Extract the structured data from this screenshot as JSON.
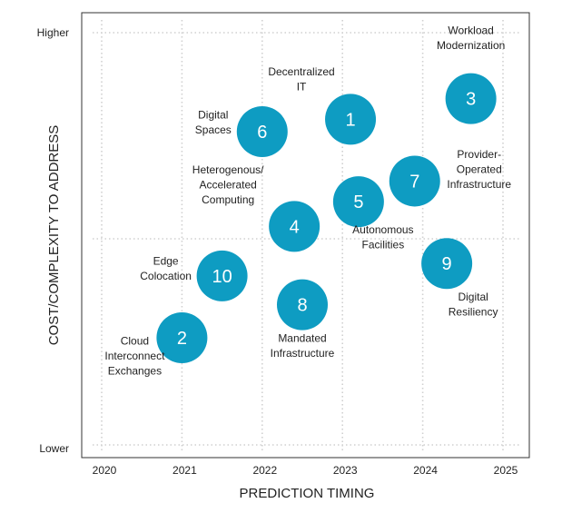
{
  "chart_data": {
    "type": "scatter",
    "title": "",
    "xlabel": "PREDICTION TIMING",
    "ylabel": "COST/COMPLEXITY TO ADDRESS",
    "x_ticks": [
      "2020",
      "2021",
      "2022",
      "2023",
      "2024",
      "2025"
    ],
    "xlim": [
      2020,
      2025
    ],
    "y_tick_high": "Higher",
    "y_tick_low": "Lower",
    "ylim": [
      0,
      100
    ],
    "grid": true,
    "marker_color": "#0e9cc2",
    "points": [
      {
        "number": "1",
        "label": [
          "Decentralized",
          "IT"
        ],
        "x": 2023.1,
        "y": 79
      },
      {
        "number": "2",
        "label": [
          "Cloud",
          "Interconnect",
          "Exchanges"
        ],
        "x": 2021.0,
        "y": 26
      },
      {
        "number": "3",
        "label": [
          "Workload",
          "Modernization"
        ],
        "x": 2024.6,
        "y": 84
      },
      {
        "number": "4",
        "label": [
          "Heterogenous/",
          "Accelerated",
          "Computing"
        ],
        "x": 2022.4,
        "y": 53
      },
      {
        "number": "5",
        "label": [
          "Autonomous",
          "Facilities"
        ],
        "x": 2023.2,
        "y": 59
      },
      {
        "number": "6",
        "label": [
          "Digital",
          "Spaces"
        ],
        "x": 2022.0,
        "y": 76
      },
      {
        "number": "7",
        "label": [
          "Provider-",
          "Operated",
          "Infrastructure"
        ],
        "x": 2023.9,
        "y": 64
      },
      {
        "number": "8",
        "label": [
          "Mandated",
          "Infrastructure"
        ],
        "x": 2022.5,
        "y": 34
      },
      {
        "number": "9",
        "label": [
          "Digital",
          "Resiliency"
        ],
        "x": 2024.3,
        "y": 44
      },
      {
        "number": "10",
        "label": [
          "Edge",
          "Colocation"
        ],
        "x": 2021.5,
        "y": 41
      }
    ]
  }
}
